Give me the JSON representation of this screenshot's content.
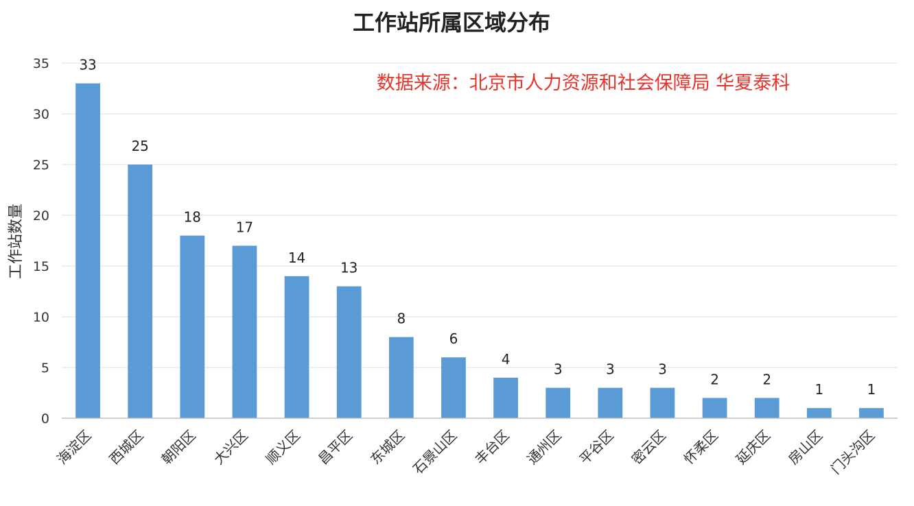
{
  "chart_data": {
    "type": "bar",
    "title": "工作站所属区域分布",
    "annotation": "数据来源：北京市人力资源和社会保障局 华夏泰科",
    "xlabel": "",
    "ylabel": "工作站数量",
    "ylim": [
      0,
      35
    ],
    "yticks": [
      0,
      5,
      10,
      15,
      20,
      25,
      30,
      35
    ],
    "grid": true,
    "legend": "none",
    "bar_color": "#5b9bd5",
    "categories": [
      "海淀区",
      "西城区",
      "朝阳区",
      "大兴区",
      "顺义区",
      "昌平区",
      "东城区",
      "石景山区",
      "丰台区",
      "通州区",
      "平谷区",
      "密云区",
      "怀柔区",
      "延庆区",
      "房山区",
      "门头沟区"
    ],
    "values": [
      33,
      25,
      18,
      17,
      14,
      13,
      8,
      6,
      4,
      3,
      3,
      3,
      2,
      2,
      1,
      1
    ]
  }
}
